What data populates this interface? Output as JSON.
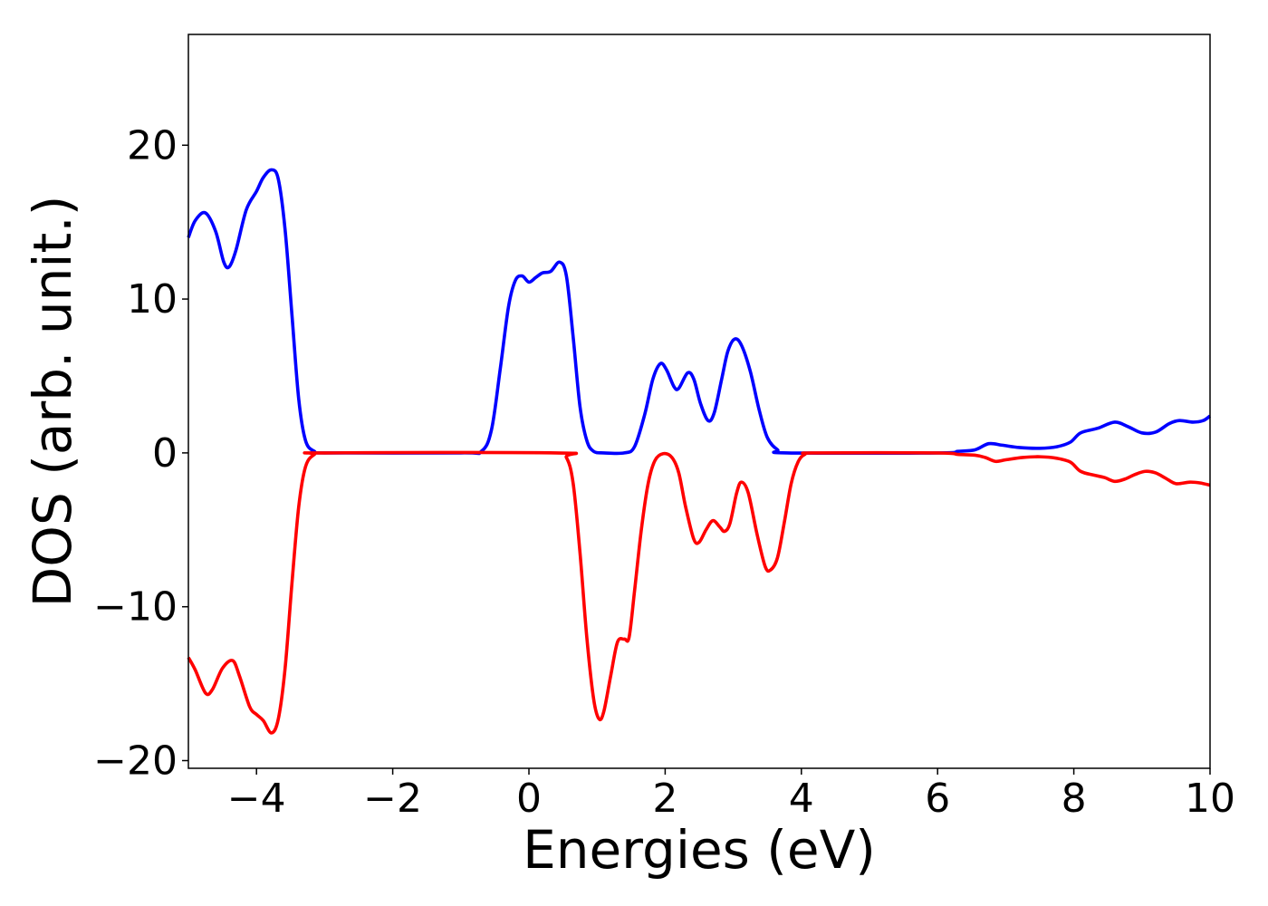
{
  "chart_data": {
    "type": "line",
    "xlabel": "Energies (eV)",
    "ylabel": "DOS (arb. unit.)",
    "xlim": [
      -5,
      10
    ],
    "ylim": [
      -20.5,
      27.2
    ],
    "x_ticks": [
      -4,
      -2,
      0,
      2,
      4,
      6,
      8,
      10
    ],
    "y_ticks": [
      -20,
      -10,
      0,
      10,
      20
    ],
    "x_tick_labels": [
      "−4",
      "−2",
      "0",
      "2",
      "4",
      "6",
      "8",
      "10"
    ],
    "y_tick_labels": [
      "−20",
      "−10",
      "0",
      "10",
      "20"
    ],
    "grid": false,
    "legend": "none",
    "series": [
      {
        "color": "#0000ff",
        "points": [
          [
            -5.0,
            14.0
          ],
          [
            -4.9,
            15.1
          ],
          [
            -4.75,
            15.6
          ],
          [
            -4.6,
            14.4
          ],
          [
            -4.48,
            12.4
          ],
          [
            -4.4,
            12.1
          ],
          [
            -4.3,
            13.2
          ],
          [
            -4.15,
            15.8
          ],
          [
            -4.0,
            17.0
          ],
          [
            -3.9,
            17.9
          ],
          [
            -3.78,
            18.4
          ],
          [
            -3.68,
            17.8
          ],
          [
            -3.58,
            14.5
          ],
          [
            -3.48,
            9.0
          ],
          [
            -3.38,
            3.5
          ],
          [
            -3.28,
            0.8
          ],
          [
            -3.15,
            0.1
          ],
          [
            -3.0,
            0.0
          ],
          [
            -1.0,
            0.0
          ],
          [
            -0.7,
            0.1
          ],
          [
            -0.55,
            1.5
          ],
          [
            -0.42,
            5.5
          ],
          [
            -0.3,
            9.5
          ],
          [
            -0.2,
            11.2
          ],
          [
            -0.1,
            11.5
          ],
          [
            0.0,
            11.1
          ],
          [
            0.1,
            11.4
          ],
          [
            0.2,
            11.7
          ],
          [
            0.32,
            11.8
          ],
          [
            0.45,
            12.4
          ],
          [
            0.55,
            11.5
          ],
          [
            0.65,
            7.5
          ],
          [
            0.75,
            3.0
          ],
          [
            0.85,
            0.8
          ],
          [
            0.95,
            0.1
          ],
          [
            1.1,
            0.0
          ],
          [
            1.4,
            0.0
          ],
          [
            1.55,
            0.4
          ],
          [
            1.7,
            2.5
          ],
          [
            1.82,
            4.8
          ],
          [
            1.93,
            5.8
          ],
          [
            2.02,
            5.4
          ],
          [
            2.13,
            4.3
          ],
          [
            2.2,
            4.2
          ],
          [
            2.33,
            5.2
          ],
          [
            2.42,
            4.8
          ],
          [
            2.52,
            3.2
          ],
          [
            2.63,
            2.1
          ],
          [
            2.72,
            2.6
          ],
          [
            2.83,
            4.8
          ],
          [
            2.92,
            6.6
          ],
          [
            3.02,
            7.4
          ],
          [
            3.12,
            7.0
          ],
          [
            3.25,
            5.3
          ],
          [
            3.38,
            2.8
          ],
          [
            3.5,
            1.0
          ],
          [
            3.65,
            0.2
          ],
          [
            3.8,
            0.0
          ],
          [
            6.0,
            0.0
          ],
          [
            6.3,
            0.1
          ],
          [
            6.55,
            0.2
          ],
          [
            6.75,
            0.6
          ],
          [
            6.95,
            0.5
          ],
          [
            7.2,
            0.35
          ],
          [
            7.5,
            0.3
          ],
          [
            7.75,
            0.4
          ],
          [
            7.95,
            0.7
          ],
          [
            8.1,
            1.3
          ],
          [
            8.35,
            1.6
          ],
          [
            8.6,
            2.0
          ],
          [
            8.8,
            1.7
          ],
          [
            9.0,
            1.3
          ],
          [
            9.2,
            1.35
          ],
          [
            9.4,
            1.9
          ],
          [
            9.55,
            2.1
          ],
          [
            9.75,
            2.0
          ],
          [
            9.9,
            2.1
          ],
          [
            10.0,
            2.4
          ]
        ]
      },
      {
        "color": "#ff0000",
        "points": [
          [
            -5.0,
            -13.3
          ],
          [
            -4.9,
            -14.1
          ],
          [
            -4.75,
            -15.6
          ],
          [
            -4.65,
            -15.4
          ],
          [
            -4.5,
            -14.0
          ],
          [
            -4.35,
            -13.5
          ],
          [
            -4.25,
            -14.5
          ],
          [
            -4.1,
            -16.5
          ],
          [
            -4.0,
            -17.0
          ],
          [
            -3.9,
            -17.4
          ],
          [
            -3.78,
            -18.2
          ],
          [
            -3.68,
            -17.3
          ],
          [
            -3.58,
            -14.0
          ],
          [
            -3.48,
            -8.5
          ],
          [
            -3.38,
            -3.5
          ],
          [
            -3.28,
            -0.9
          ],
          [
            -3.15,
            -0.1
          ],
          [
            -3.0,
            0.0
          ],
          [
            0.4,
            0.0
          ],
          [
            0.55,
            -0.3
          ],
          [
            0.65,
            -2.0
          ],
          [
            0.75,
            -6.5
          ],
          [
            0.85,
            -12.0
          ],
          [
            0.95,
            -16.0
          ],
          [
            1.03,
            -17.3
          ],
          [
            1.1,
            -16.8
          ],
          [
            1.2,
            -14.5
          ],
          [
            1.3,
            -12.3
          ],
          [
            1.4,
            -12.1
          ],
          [
            1.47,
            -12.0
          ],
          [
            1.55,
            -9.0
          ],
          [
            1.65,
            -5.0
          ],
          [
            1.75,
            -2.0
          ],
          [
            1.85,
            -0.5
          ],
          [
            1.97,
            -0.05
          ],
          [
            2.1,
            -0.3
          ],
          [
            2.2,
            -1.3
          ],
          [
            2.3,
            -3.5
          ],
          [
            2.42,
            -5.6
          ],
          [
            2.5,
            -5.8
          ],
          [
            2.6,
            -5.0
          ],
          [
            2.7,
            -4.4
          ],
          [
            2.8,
            -4.8
          ],
          [
            2.87,
            -5.1
          ],
          [
            2.95,
            -4.6
          ],
          [
            3.05,
            -2.6
          ],
          [
            3.12,
            -1.9
          ],
          [
            3.22,
            -2.6
          ],
          [
            3.35,
            -5.3
          ],
          [
            3.47,
            -7.4
          ],
          [
            3.55,
            -7.6
          ],
          [
            3.65,
            -6.8
          ],
          [
            3.75,
            -4.5
          ],
          [
            3.85,
            -2.0
          ],
          [
            3.95,
            -0.6
          ],
          [
            4.05,
            -0.1
          ],
          [
            4.2,
            0.0
          ],
          [
            6.0,
            0.0
          ],
          [
            6.3,
            -0.1
          ],
          [
            6.55,
            -0.15
          ],
          [
            6.7,
            -0.3
          ],
          [
            6.85,
            -0.55
          ],
          [
            7.0,
            -0.45
          ],
          [
            7.25,
            -0.3
          ],
          [
            7.5,
            -0.25
          ],
          [
            7.75,
            -0.35
          ],
          [
            7.95,
            -0.6
          ],
          [
            8.1,
            -1.2
          ],
          [
            8.3,
            -1.45
          ],
          [
            8.45,
            -1.6
          ],
          [
            8.6,
            -1.85
          ],
          [
            8.75,
            -1.7
          ],
          [
            8.9,
            -1.4
          ],
          [
            9.05,
            -1.2
          ],
          [
            9.2,
            -1.3
          ],
          [
            9.35,
            -1.65
          ],
          [
            9.5,
            -2.0
          ],
          [
            9.7,
            -1.9
          ],
          [
            9.85,
            -1.95
          ],
          [
            10.0,
            -2.1
          ]
        ]
      }
    ]
  }
}
